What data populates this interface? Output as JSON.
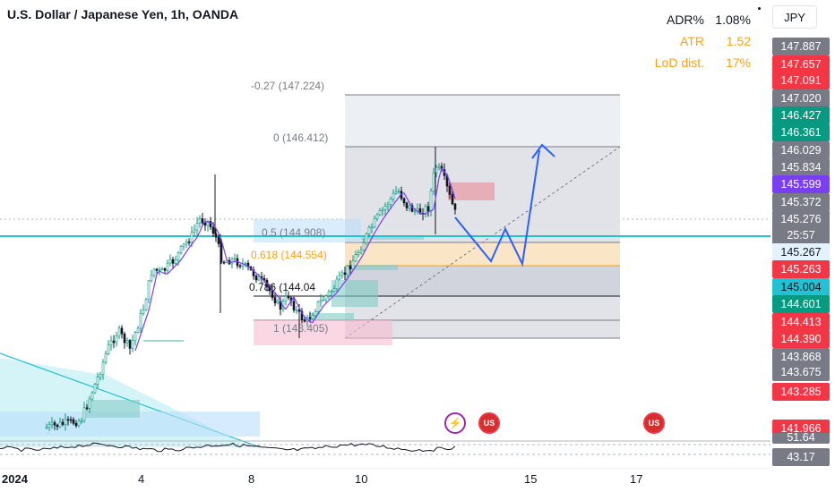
{
  "header": {
    "title": "U.S. Dollar / Japanese Yen, 1h, OANDA",
    "currency": "JPY"
  },
  "stats": [
    {
      "label": "ADR%",
      "value": "1.08%",
      "color": "#131722"
    },
    {
      "label": "ATR",
      "value": "1.52",
      "color": "#f7a21b"
    },
    {
      "label": "LoD dist.",
      "value": "17%",
      "color": "#f7a21b"
    }
  ],
  "fib_labels": {
    "l_n027": "-0.27 (147.224)",
    "l_0": "0 (146.412)",
    "l_05": "0.5 (144.908)",
    "l_0618": "0.618 (144.554)",
    "l_0786": "0.786 (144.04",
    "l_1": "1 (143.405)"
  },
  "price_axis": [
    {
      "text": "147.887",
      "bg": "#787b86",
      "fg": "#ffffff"
    },
    {
      "text": "147.657",
      "bg": "#f23645",
      "fg": "#ffffff"
    },
    {
      "text": "147.091",
      "bg": "#f23645",
      "fg": "#ffffff"
    },
    {
      "text": "147.020",
      "bg": "#787b86",
      "fg": "#ffffff"
    },
    {
      "text": "146.427",
      "bg": "#089981",
      "fg": "#ffffff"
    },
    {
      "text": "146.361",
      "bg": "#089981",
      "fg": "#ffffff"
    },
    {
      "text": "146.029",
      "bg": "#787b86",
      "fg": "#ffffff"
    },
    {
      "text": "145.834",
      "bg": "#787b86",
      "fg": "#ffffff"
    },
    {
      "text": "145.599",
      "bg": "#7b3ff2",
      "fg": "#ffffff"
    },
    {
      "text": "145.372",
      "bg": "#787b86",
      "fg": "#ffffff"
    },
    {
      "text": "145.276",
      "bg": "#787b86",
      "fg": "#ffffff"
    },
    {
      "text": "25:57",
      "bg": "#787b86",
      "fg": "#ffffff"
    },
    {
      "text": "145.267",
      "bg": "#e3f2fd",
      "fg": "#131722"
    },
    {
      "text": "145.263",
      "bg": "#f23645",
      "fg": "#ffffff"
    },
    {
      "text": "145.004",
      "bg": "#22c1d3",
      "fg": "#131722"
    },
    {
      "text": "144.601",
      "bg": "#089981",
      "fg": "#ffffff"
    },
    {
      "text": "144.413",
      "bg": "#f23645",
      "fg": "#ffffff"
    },
    {
      "text": "144.390",
      "bg": "#f23645",
      "fg": "#ffffff"
    },
    {
      "text": "143.868",
      "bg": "#787b86",
      "fg": "#ffffff"
    },
    {
      "text": "143.675",
      "bg": "#787b86",
      "fg": "#ffffff"
    },
    {
      "text": "143.285",
      "bg": "#f23645",
      "fg": "#ffffff"
    },
    {
      "text": "141.966",
      "bg": "#f23645",
      "fg": "#ffffff"
    },
    {
      "text": "51.64",
      "bg": "#787b86",
      "fg": "#ffffff"
    },
    {
      "text": "43.17",
      "bg": "#787b86",
      "fg": "#ffffff"
    }
  ],
  "time_axis": [
    "2024",
    "4",
    "8",
    "10",
    "15",
    "17"
  ],
  "events": {
    "e1": "⚡",
    "e2": "US",
    "e3": "US"
  },
  "colors": {
    "up": "#089981",
    "down": "#131722",
    "projection": "#2962ff",
    "ma": "#7b3ff2",
    "support": "#22c1d3",
    "fib_label": "#787b86",
    "fib_0618": "#f7a21b"
  }
}
